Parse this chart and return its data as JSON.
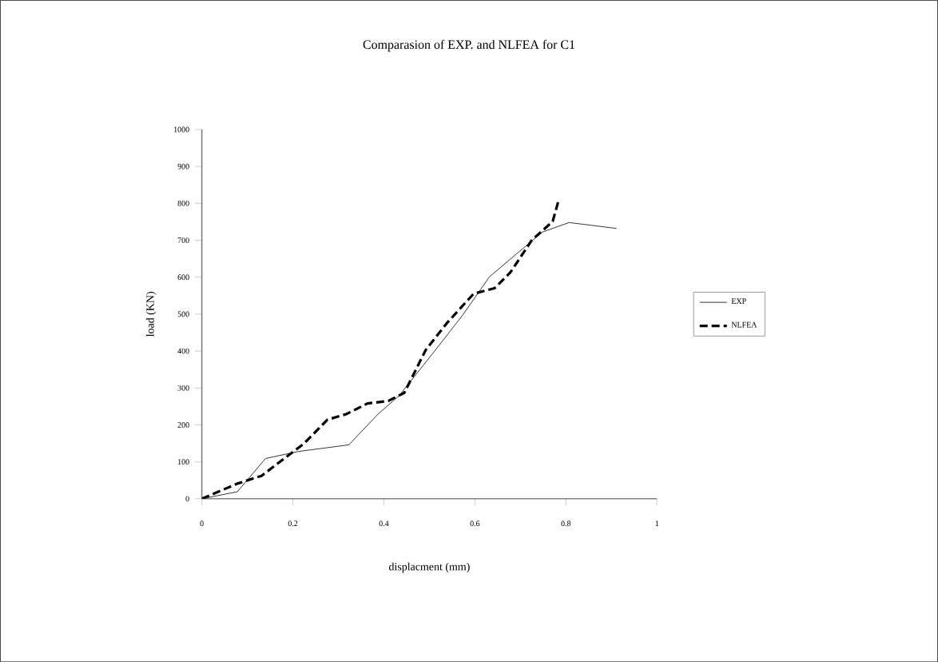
{
  "chart_data": {
    "type": "line",
    "title": "Comparasion of EXP. and NLFEA for C1",
    "xlabel": "displacment (mm)",
    "ylabel": "load (KN)",
    "xlim": [
      0,
      1
    ],
    "ylim": [
      0,
      1000
    ],
    "xticks": [
      0,
      0.2,
      0.4,
      0.6,
      0.8,
      1
    ],
    "yticks": [
      0,
      100,
      200,
      300,
      400,
      500,
      600,
      700,
      800,
      900,
      1000
    ],
    "grid": false,
    "legend": "right",
    "marker": "none",
    "series": [
      {
        "name": "EXP",
        "color": "#000000",
        "line_style": "solid",
        "x": [
          0,
          0.078,
          0.14,
          0.212,
          0.323,
          0.387,
          0.434,
          0.509,
          0.573,
          0.632,
          0.678,
          0.748,
          0.807,
          0.911
        ],
        "values": [
          0,
          19,
          109,
          128,
          146,
          229,
          280,
          396,
          497,
          601,
          649,
          722,
          748,
          732
        ]
      },
      {
        "name": "NLFEA",
        "color": "#000000",
        "line_style": "dashed",
        "x": [
          0,
          0.078,
          0.131,
          0.224,
          0.276,
          0.317,
          0.364,
          0.41,
          0.445,
          0.492,
          0.538,
          0.597,
          0.643,
          0.678,
          0.725,
          0.771,
          0.783
        ],
        "values": [
          0,
          41,
          62,
          149,
          214,
          229,
          258,
          265,
          287,
          403,
          475,
          555,
          570,
          613,
          700,
          751,
          804
        ]
      }
    ]
  }
}
